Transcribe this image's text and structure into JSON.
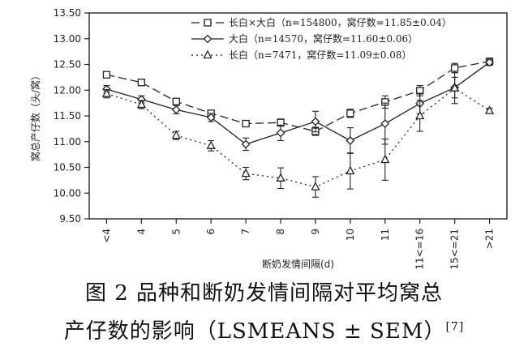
{
  "chart_data": {
    "type": "line",
    "ylabel": "窝总产仔数（头/窝）",
    "xlabel": "断奶发情间隔(d)",
    "categories": [
      "<4",
      "4",
      "5",
      "6",
      "7",
      "8",
      "9",
      "10",
      "11",
      "11<=16",
      "15<=21",
      ">21"
    ],
    "yticks": [
      "9.50",
      "10.00",
      "10.50",
      "11.00",
      "11.50",
      "12.00",
      "12.50",
      "13.00",
      "13.50"
    ],
    "ylim": [
      9.5,
      13.5
    ],
    "grid": false,
    "legend_position": "top-right",
    "series": [
      {
        "name": "长白×大白（n=154800，窝仔数=11.85±0.04）",
        "marker": "square",
        "line": "dashed",
        "values": [
          12.3,
          12.15,
          11.78,
          11.55,
          11.35,
          11.37,
          11.2,
          11.55,
          11.77,
          11.99,
          12.43,
          12.56
        ],
        "errors": [
          0.04,
          0.04,
          0.05,
          0.05,
          0.06,
          0.07,
          0.08,
          0.08,
          0.12,
          0.1,
          0.09,
          0.05
        ]
      },
      {
        "name": "大白（n=14570，窝仔数=11.60±0.06）",
        "marker": "diamond",
        "line": "solid",
        "values": [
          12.02,
          11.82,
          11.62,
          11.47,
          10.95,
          11.17,
          11.39,
          11.02,
          11.35,
          11.74,
          12.05,
          12.54
        ],
        "errors": [
          0.07,
          0.07,
          0.08,
          0.08,
          0.12,
          0.15,
          0.2,
          0.25,
          0.4,
          0.2,
          0.2,
          0.06
        ]
      },
      {
        "name": "长白（n=7471，窝仔数=11.09±0.08）",
        "marker": "triangle",
        "line": "dotted",
        "values": [
          11.93,
          11.72,
          11.12,
          10.92,
          10.38,
          10.29,
          10.12,
          10.43,
          10.65,
          11.5,
          12.04,
          11.6
        ],
        "errors": [
          0.08,
          0.08,
          0.08,
          0.1,
          0.12,
          0.2,
          0.2,
          0.35,
          0.4,
          0.3,
          0.3,
          0.05
        ]
      }
    ]
  },
  "caption": {
    "line1": "图 2  品种和断奶发情间隔对平均窝总",
    "line2": "产仔数的影响（LSMEANS ± SEM）",
    "ref": "[7]"
  }
}
